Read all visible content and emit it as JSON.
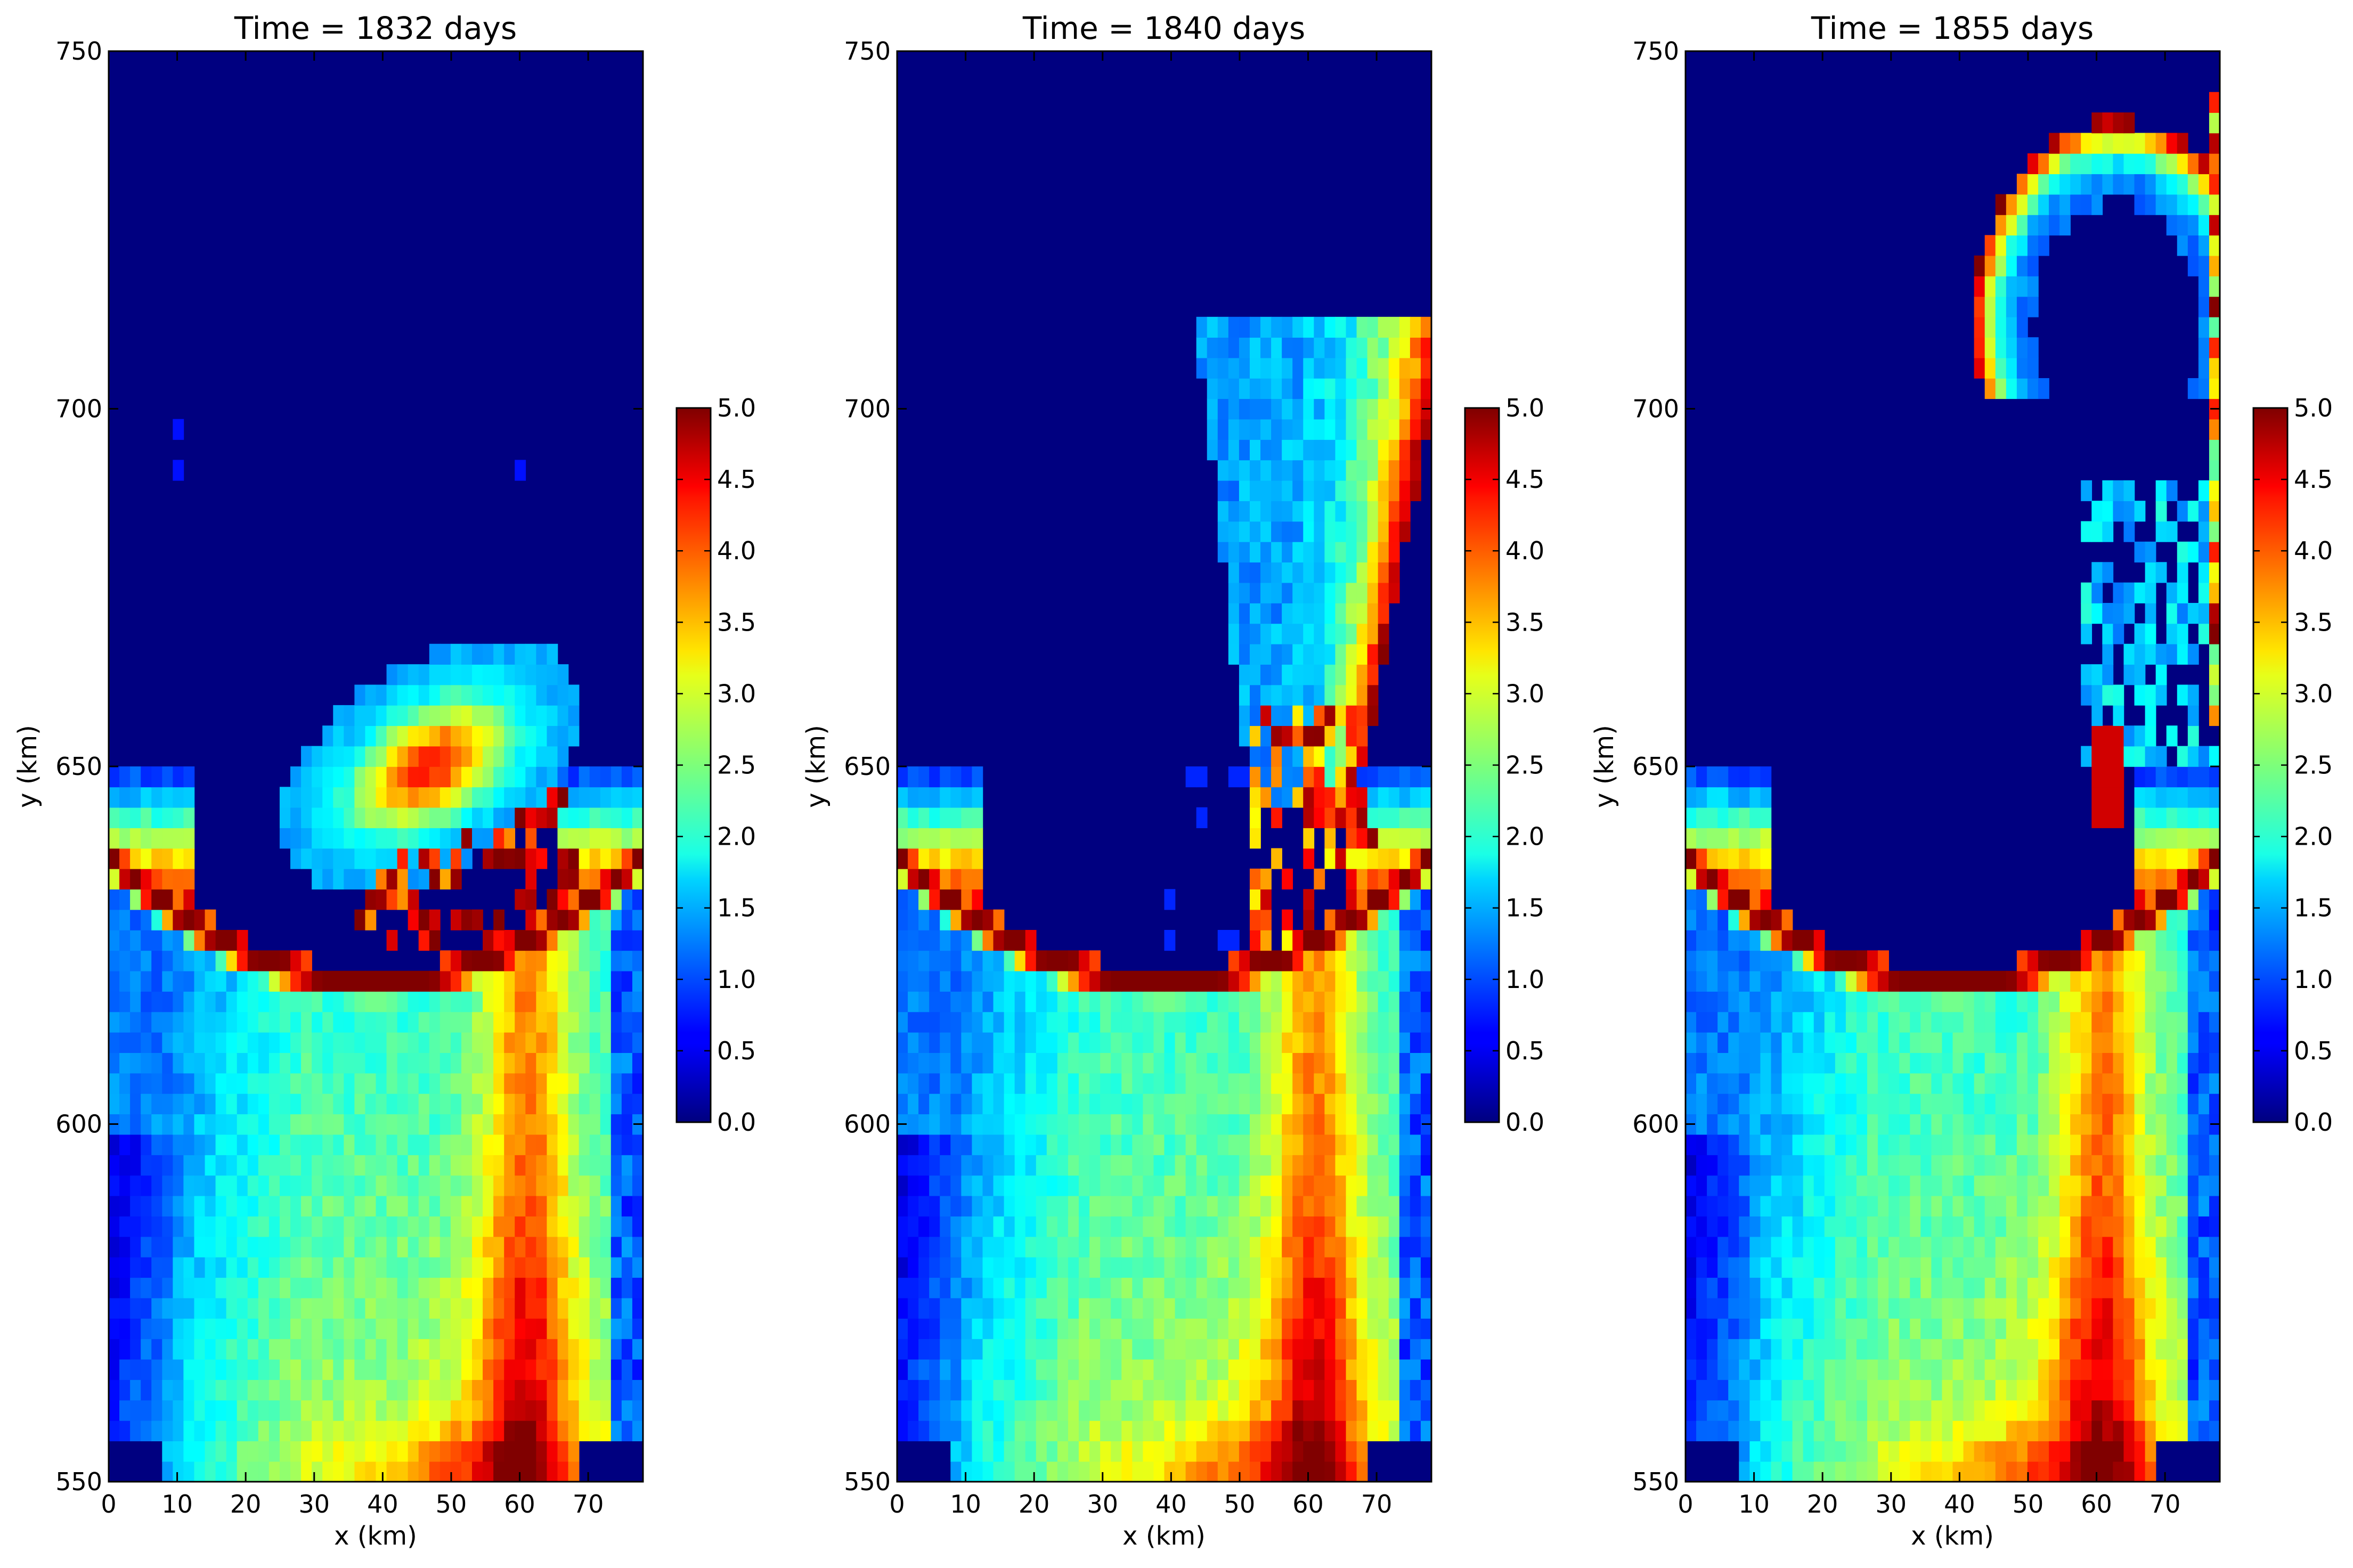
{
  "chart_data": [
    {
      "type": "heatmap",
      "title": "Time = 1832 days",
      "xlabel": "x (km)",
      "ylabel": "y (km)",
      "xlim": [
        0,
        78
      ],
      "ylim": [
        550,
        750
      ],
      "xticks": [
        "0",
        "10",
        "20",
        "30",
        "40",
        "50",
        "60",
        "70"
      ],
      "yticks": [
        "550",
        "600",
        "650",
        "700",
        "750"
      ],
      "colorbar": {
        "min": 0.0,
        "max": 5.0,
        "ticks": [
          "0.0",
          "0.5",
          "1.0",
          "1.5",
          "2.0",
          "2.5",
          "3.0",
          "3.5",
          "4.0",
          "4.5",
          "5.0"
        ]
      },
      "colormap": "jet",
      "grid": false
    },
    {
      "type": "heatmap",
      "title": "Time = 1840 days",
      "xlabel": "x (km)",
      "ylabel": "y (km)",
      "xlim": [
        0,
        78
      ],
      "ylim": [
        550,
        750
      ],
      "xticks": [
        "0",
        "10",
        "20",
        "30",
        "40",
        "50",
        "60",
        "70"
      ],
      "yticks": [
        "550",
        "600",
        "650",
        "700",
        "750"
      ],
      "colorbar": {
        "min": 0.0,
        "max": 5.0,
        "ticks": [
          "0.0",
          "0.5",
          "1.0",
          "1.5",
          "2.0",
          "2.5",
          "3.0",
          "3.5",
          "4.0",
          "4.5",
          "5.0"
        ]
      },
      "colormap": "jet",
      "grid": false
    },
    {
      "type": "heatmap",
      "title": "Time = 1855 days",
      "xlabel": "x (km)",
      "ylabel": "y (km)",
      "xlim": [
        0,
        78
      ],
      "ylim": [
        550,
        750
      ],
      "xticks": [
        "0",
        "10",
        "20",
        "30",
        "40",
        "50",
        "60",
        "70"
      ],
      "yticks": [
        "550",
        "600",
        "650",
        "700",
        "750"
      ],
      "colorbar": {
        "min": 0.0,
        "max": 5.0,
        "ticks": [
          "0.0",
          "0.5",
          "1.0",
          "1.5",
          "2.0",
          "2.5",
          "3.0",
          "3.5",
          "4.0",
          "4.5",
          "5.0"
        ]
      },
      "colormap": "jet",
      "grid": false
    }
  ]
}
